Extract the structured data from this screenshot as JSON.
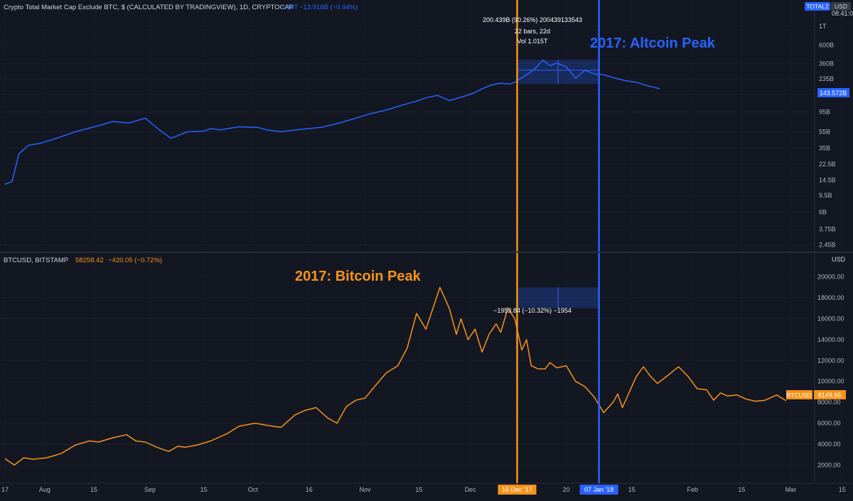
{
  "chart_data": [
    {
      "type": "line",
      "scale": "log",
      "legend": {
        "title": "Crypto Total Market Cap Exclude BTC, $ (CALCULATED BY TRADINGVIEW), 1D, CRYPTOCAP",
        "last": "1.46T",
        "change": "−13.916B (−0.94%)"
      },
      "symbol_badge": "TOTAL2",
      "currency_badge": "USD",
      "clock": "08:41:03",
      "price_label": "143.572B",
      "yticks": [
        "1T",
        "600B",
        "360B",
        "235B",
        "155B",
        "95B",
        "55B",
        "35B",
        "22.5B",
        "14.5B",
        "9.5B",
        "6B",
        "3.75B",
        "2.45B"
      ],
      "ytick_values": [
        1000,
        600,
        360,
        235,
        155,
        95,
        55,
        35,
        22.5,
        14.5,
        9.5,
        6,
        3.75,
        2.45
      ],
      "ylim": [
        2.2,
        1400
      ],
      "unit": "B",
      "series": [
        {
          "color": "#2962ff",
          "x": [
            0,
            3,
            6,
            10,
            15,
            22,
            30,
            40,
            46,
            53,
            60,
            66,
            71,
            78,
            85,
            88,
            92,
            100,
            108,
            112,
            118,
            122,
            127,
            135,
            143,
            150,
            156,
            163,
            170,
            176,
            180,
            185,
            190,
            196,
            200,
            204,
            208,
            212,
            216,
            218,
            221,
            224,
            227,
            230,
            233,
            236,
            240,
            244,
            248,
            252,
            256,
            260,
            265,
            270,
            275,
            280
          ],
          "y": [
            13,
            14,
            30,
            38,
            40,
            46,
            55,
            65,
            73,
            70,
            80,
            58,
            46,
            55,
            56,
            60,
            58,
            63,
            62,
            58,
            55,
            57,
            59,
            62,
            70,
            80,
            90,
            100,
            115,
            128,
            140,
            150,
            130,
            145,
            158,
            180,
            200,
            210,
            205,
            215,
            245,
            275,
            320,
            395,
            340,
            365,
            330,
            240,
            300,
            270,
            265,
            245,
            225,
            215,
            195,
            180
          ]
        }
      ],
      "annotations": {
        "measure_line1": "200.439B (90.26%) 200439133543",
        "measure_line2": "22 bars, 22d",
        "measure_line3": "Vol 1.015T",
        "peak_label": "2017: Altcoin Peak"
      }
    },
    {
      "type": "line",
      "legend": {
        "title": "BTCUSD, BITSTAMP",
        "last": "58258.42",
        "change": "−420.05 (−0.72%)"
      },
      "currency_badge": "USD",
      "symbol_badge": "BTCUSD",
      "price_label": "8149.66",
      "yticks": [
        "20000.00",
        "18000.00",
        "16000.00",
        "14000.00",
        "12000.00",
        "10000.00",
        "8000.00",
        "6000.00",
        "4000.00",
        "2000.00"
      ],
      "ytick_values": [
        20000,
        18000,
        16000,
        14000,
        12000,
        10000,
        8000,
        6000,
        4000,
        2000
      ],
      "ylim": [
        800,
        21200
      ],
      "series": [
        {
          "color": "#f7931a",
          "x": [
            0,
            4,
            8,
            12,
            18,
            24,
            30,
            36,
            40,
            46,
            52,
            56,
            60,
            65,
            70,
            74,
            77,
            82,
            88,
            95,
            100,
            107,
            112,
            118,
            124,
            128,
            133,
            138,
            142,
            146,
            150,
            154,
            158,
            163,
            168,
            172,
            176,
            180,
            186,
            190,
            193,
            195,
            198,
            201,
            204,
            207,
            210,
            212,
            215,
            218,
            221,
            223,
            225,
            228,
            231,
            233,
            236,
            240,
            244,
            248,
            252,
            256,
            260,
            262,
            264,
            267,
            270,
            273,
            276,
            279,
            283,
            288,
            292,
            296,
            300,
            303,
            306,
            309,
            313,
            317,
            321,
            325,
            330,
            334
          ],
          "y": [
            2600,
            2000,
            2700,
            2550,
            2700,
            3100,
            3900,
            4300,
            4200,
            4600,
            4900,
            4300,
            4200,
            3700,
            3300,
            3800,
            3700,
            3900,
            4300,
            5000,
            5700,
            6000,
            5800,
            5600,
            6800,
            7200,
            7500,
            6500,
            6000,
            7600,
            8200,
            8400,
            9500,
            10800,
            11500,
            13200,
            16500,
            15000,
            19000,
            17000,
            14500,
            16000,
            14000,
            15000,
            12800,
            14500,
            15500,
            14700,
            17000,
            16000,
            13000,
            14000,
            11500,
            11200,
            11200,
            11800,
            11300,
            11500,
            10000,
            9500,
            8500,
            7000,
            8000,
            8800,
            7500,
            9000,
            10500,
            11400,
            10500,
            9800,
            10500,
            11400,
            10500,
            9300,
            9200,
            8200,
            8900,
            8600,
            8700,
            8300,
            8100,
            8200,
            8700,
            8150
          ]
        }
      ],
      "annotations": {
        "measure_label": "−1953.84 (−10.32%) −1954",
        "peak_label": "2017: Bitcoin Peak"
      }
    }
  ],
  "time_axis": {
    "labels": [
      "17",
      "Aug",
      "15",
      "Sep",
      "15",
      "Oct",
      "16",
      "Nov",
      "15",
      "Dec",
      "16 Dec '17",
      "20",
      "07 Jan '18",
      "15",
      "Feb",
      "15",
      "Mar",
      "15"
    ],
    "label_x": [
      0,
      17,
      38,
      62,
      85,
      106,
      130,
      154,
      177,
      199,
      219,
      240,
      254,
      268,
      294,
      315,
      336,
      358
    ]
  },
  "markers": {
    "bitcoin_peak_x": 219,
    "altcoin_peak_x": 254,
    "bitcoin_color": "#f7931a",
    "altcoin_color": "#2962ff"
  },
  "colors": {
    "background": "#131722",
    "grid": "#1f2330",
    "text": "#d1d4dc",
    "blue": "#2962ff",
    "orange": "#f7931a"
  }
}
